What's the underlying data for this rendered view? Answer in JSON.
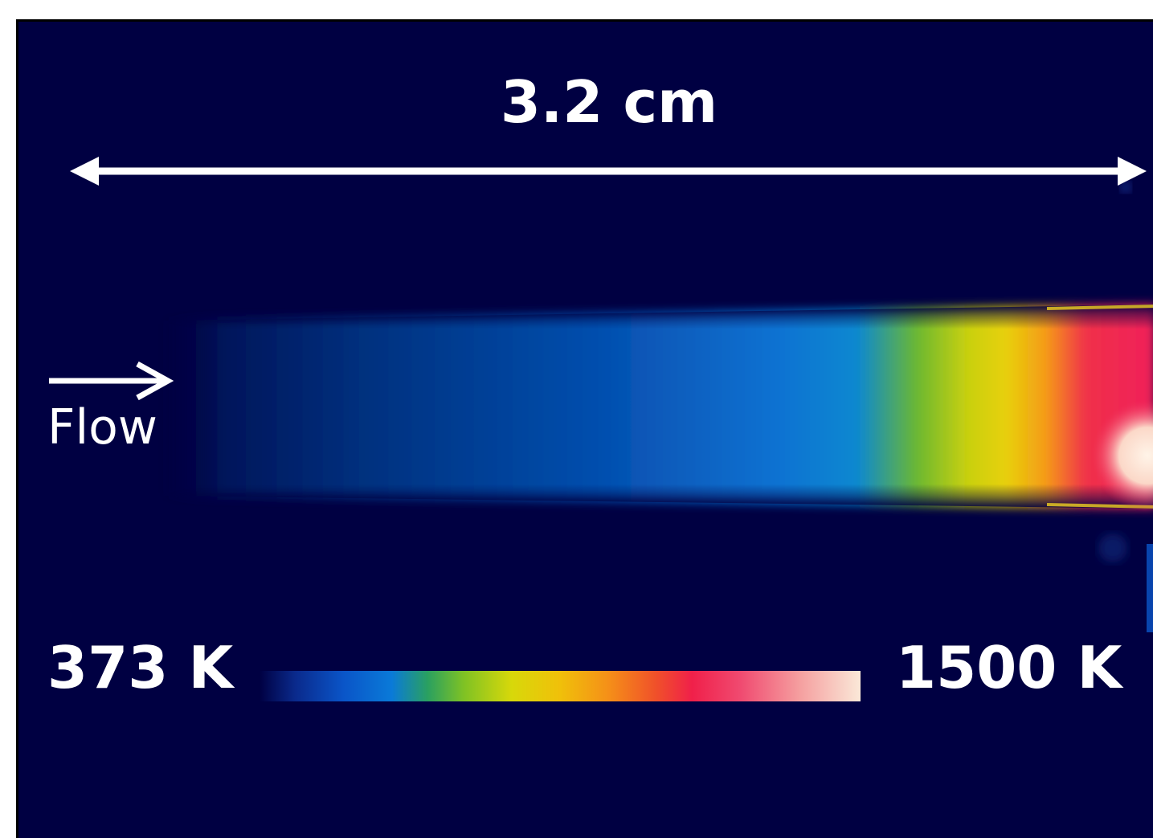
{
  "image": {
    "scale_bar_label": "3.2 cm",
    "flow_label": "Flow",
    "colorbar": {
      "min_label": "373 K",
      "max_label": "1500 K",
      "colors": [
        "#000042",
        "#0a55c8",
        "#0a7ad8",
        "#7fc224",
        "#d8d80a",
        "#f59018",
        "#f0204a",
        "#fae8d8"
      ]
    },
    "background_color": "#000042"
  }
}
